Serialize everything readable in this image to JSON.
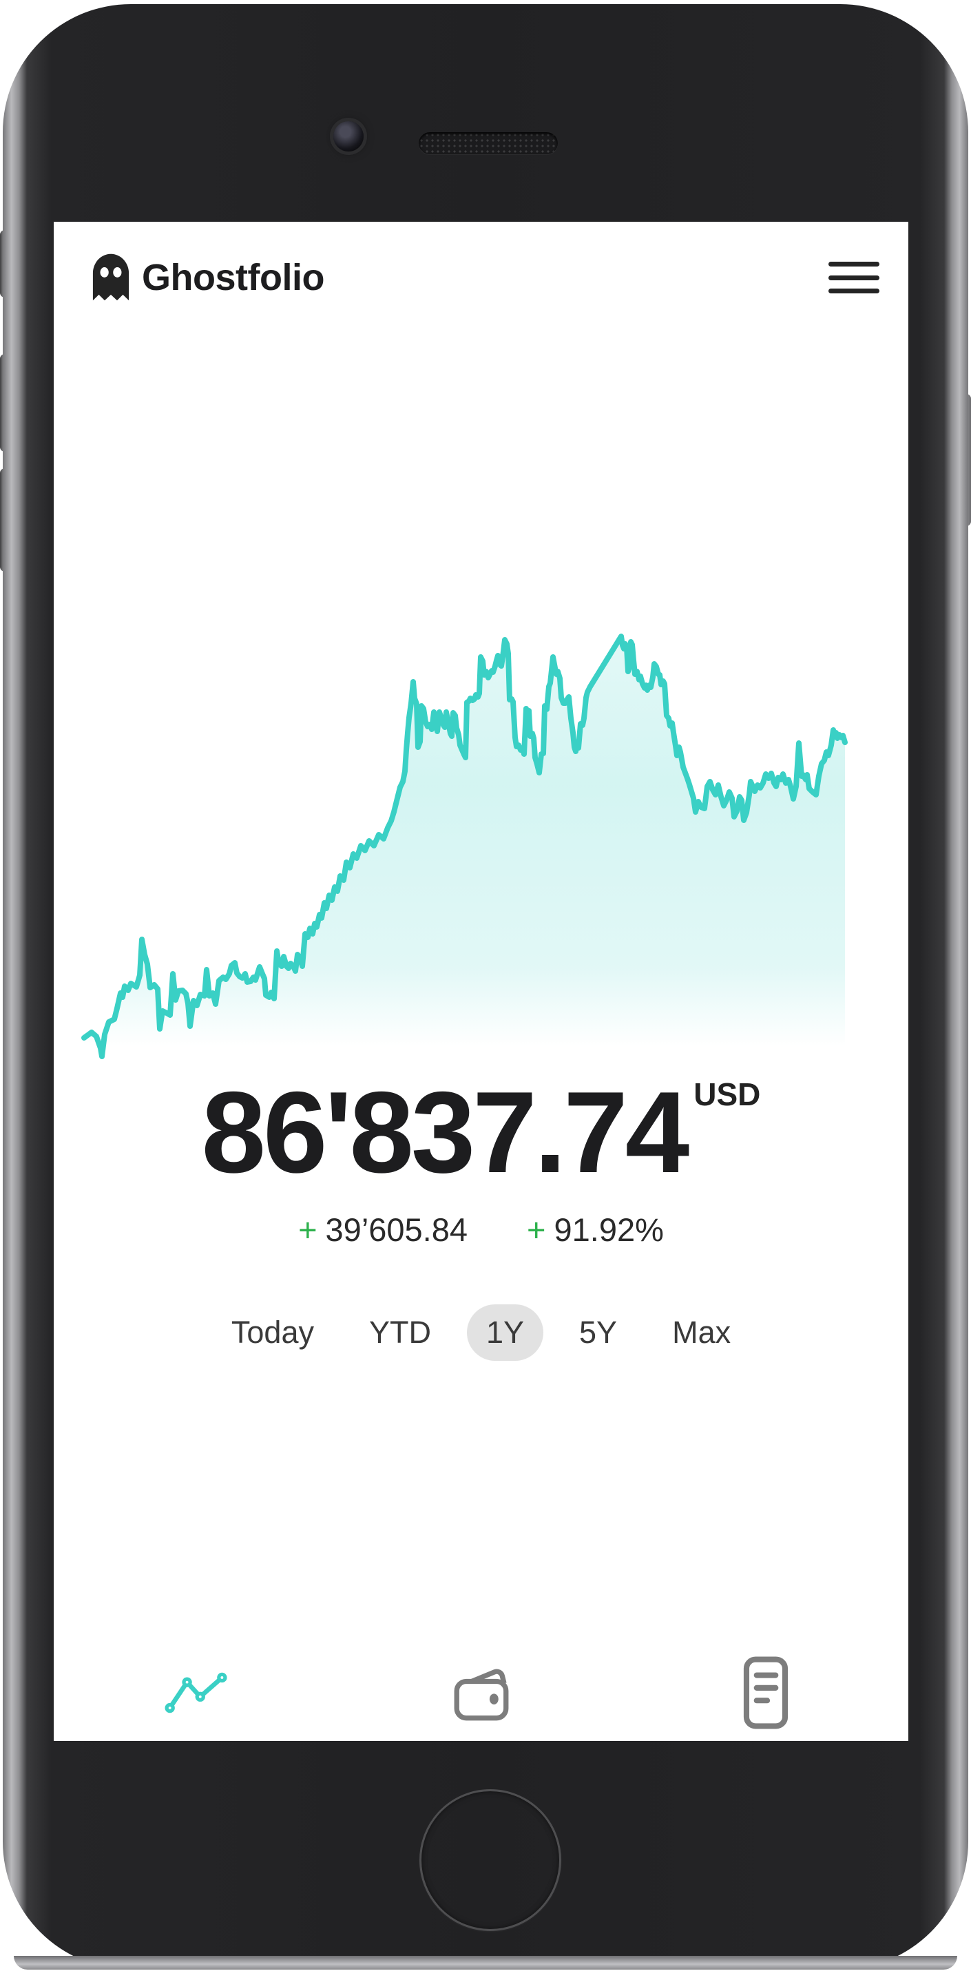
{
  "app": {
    "title": "Ghostfolio"
  },
  "header": {
    "logo_icon": "ghost-icon",
    "menu_icon": "hamburger-menu-icon"
  },
  "portfolio": {
    "total_value": "86'837.74",
    "currency": "USD",
    "change": {
      "sign": "+",
      "absolute": "39’605.84"
    },
    "performance": {
      "sign": "+",
      "percent": "91.92%"
    }
  },
  "range_selector": {
    "options": [
      {
        "label": "Today",
        "selected": false
      },
      {
        "label": "YTD",
        "selected": false
      },
      {
        "label": "1Y",
        "selected": true
      },
      {
        "label": "5Y",
        "selected": false
      },
      {
        "label": "Max",
        "selected": false
      }
    ]
  },
  "bottom_nav": [
    {
      "name": "overview",
      "icon": "line-chart-icon",
      "active": true
    },
    {
      "name": "accounts",
      "icon": "wallet-icon",
      "active": false
    },
    {
      "name": "transactions",
      "icon": "document-list-icon",
      "active": false
    }
  ],
  "colors": {
    "accent_teal": "#3ad0c5",
    "fill_teal": "#3ad0c5",
    "positive_green": "#2db14c",
    "text_dark": "#1d1d1f",
    "pill_gray": "#e2e2e2",
    "nav_inactive_gray": "#7d7d7d",
    "phone_body": "#232325"
  },
  "chart_data": {
    "type": "area",
    "description": "Portfolio value over selected range (1Y), no axes shown",
    "selected_range": "1Y",
    "end_value": "86'837.74 USD",
    "change_absolute": "+39'605.84",
    "change_percent": "+91.92%",
    "legend": false,
    "grid": false,
    "coordinate_space": "svg 1126x636, y down",
    "points": [
      [
        14,
        605
      ],
      [
        25,
        597
      ],
      [
        32,
        603
      ],
      [
        38,
        620
      ],
      [
        40,
        632
      ],
      [
        44,
        600
      ],
      [
        50,
        582
      ],
      [
        58,
        578
      ],
      [
        62,
        562
      ],
      [
        67,
        540
      ],
      [
        70,
        546
      ],
      [
        73,
        530
      ],
      [
        78,
        536
      ],
      [
        82,
        526
      ],
      [
        90,
        531
      ],
      [
        95,
        514
      ],
      [
        98,
        462
      ],
      [
        102,
        484
      ],
      [
        106,
        498
      ],
      [
        110,
        532
      ],
      [
        116,
        528
      ],
      [
        121,
        534
      ],
      [
        124,
        592
      ],
      [
        128,
        566
      ],
      [
        134,
        569
      ],
      [
        139,
        572
      ],
      [
        143,
        512
      ],
      [
        147,
        550
      ],
      [
        151,
        537
      ],
      [
        157,
        536
      ],
      [
        162,
        541
      ],
      [
        165,
        555
      ],
      [
        168,
        588
      ],
      [
        173,
        551
      ],
      [
        178,
        558
      ],
      [
        183,
        542
      ],
      [
        189,
        544
      ],
      [
        192,
        506
      ],
      [
        196,
        544
      ],
      [
        201,
        540
      ],
      [
        205,
        556
      ],
      [
        210,
        522
      ],
      [
        216,
        517
      ],
      [
        220,
        520
      ],
      [
        225,
        512
      ],
      [
        228,
        500
      ],
      [
        233,
        496
      ],
      [
        236,
        511
      ],
      [
        240,
        516
      ],
      [
        244,
        518
      ],
      [
        248,
        512
      ],
      [
        251,
        524
      ],
      [
        256,
        523
      ],
      [
        260,
        517
      ],
      [
        263,
        521
      ],
      [
        269,
        502
      ],
      [
        273,
        512
      ],
      [
        276,
        519
      ],
      [
        278,
        543
      ],
      [
        283,
        546
      ],
      [
        286,
        539
      ],
      [
        290,
        548
      ],
      [
        294,
        479
      ],
      [
        297,
        497
      ],
      [
        301,
        501
      ],
      [
        304,
        487
      ],
      [
        308,
        501
      ],
      [
        311,
        504
      ],
      [
        314,
        497
      ],
      [
        318,
        501
      ],
      [
        321,
        508
      ],
      [
        324,
        484
      ],
      [
        328,
        489
      ],
      [
        331,
        501
      ],
      [
        335,
        454
      ],
      [
        339,
        459
      ],
      [
        342,
        446
      ],
      [
        346,
        454
      ],
      [
        349,
        439
      ],
      [
        352,
        444
      ],
      [
        356,
        426
      ],
      [
        359,
        431
      ],
      [
        363,
        409
      ],
      [
        366,
        417
      ],
      [
        370,
        398
      ],
      [
        374,
        405
      ],
      [
        378,
        386
      ],
      [
        382,
        392
      ],
      [
        386,
        370
      ],
      [
        391,
        376
      ],
      [
        395,
        350
      ],
      [
        400,
        358
      ],
      [
        405,
        338
      ],
      [
        410,
        344
      ],
      [
        416,
        326
      ],
      [
        422,
        333
      ],
      [
        428,
        319
      ],
      [
        435,
        326
      ],
      [
        442,
        310
      ],
      [
        449,
        316
      ],
      [
        455,
        300
      ],
      [
        460,
        290
      ],
      [
        464,
        277
      ],
      [
        469,
        257
      ],
      [
        473,
        241
      ],
      [
        477,
        233
      ],
      [
        480,
        218
      ],
      [
        482,
        187
      ],
      [
        484,
        162
      ],
      [
        486,
        140
      ],
      [
        489,
        119
      ],
      [
        492,
        88
      ],
      [
        494,
        112
      ],
      [
        497,
        120
      ],
      [
        499,
        183
      ],
      [
        502,
        175
      ],
      [
        504,
        123
      ],
      [
        507,
        127
      ],
      [
        510,
        146
      ],
      [
        513,
        153
      ],
      [
        516,
        150
      ],
      [
        519,
        157
      ],
      [
        522,
        132
      ],
      [
        525,
        141
      ],
      [
        527,
        160
      ],
      [
        530,
        132
      ],
      [
        533,
        141
      ],
      [
        536,
        151
      ],
      [
        538,
        154
      ],
      [
        540,
        132
      ],
      [
        543,
        147
      ],
      [
        546,
        163
      ],
      [
        548,
        167
      ],
      [
        550,
        133
      ],
      [
        553,
        137
      ],
      [
        555,
        155
      ],
      [
        558,
        165
      ],
      [
        560,
        180
      ],
      [
        563,
        187
      ],
      [
        566,
        194
      ],
      [
        568,
        198
      ],
      [
        570,
        118
      ],
      [
        573,
        116
      ],
      [
        575,
        112
      ],
      [
        578,
        115
      ],
      [
        581,
        113
      ],
      [
        583,
        107
      ],
      [
        586,
        110
      ],
      [
        588,
        105
      ],
      [
        590,
        52
      ],
      [
        593,
        58
      ],
      [
        595,
        78
      ],
      [
        598,
        73
      ],
      [
        601,
        82
      ],
      [
        603,
        78
      ],
      [
        606,
        72
      ],
      [
        608,
        74
      ],
      [
        611,
        65
      ],
      [
        613,
        57
      ],
      [
        615,
        50
      ],
      [
        617,
        62
      ],
      [
        620,
        65
      ],
      [
        622,
        52
      ],
      [
        625,
        27
      ],
      [
        628,
        33
      ],
      [
        630,
        47
      ],
      [
        632,
        114
      ],
      [
        635,
        113
      ],
      [
        637,
        117
      ],
      [
        640,
        169
      ],
      [
        642,
        182
      ],
      [
        645,
        180
      ],
      [
        648,
        187
      ],
      [
        651,
        185
      ],
      [
        653,
        193
      ],
      [
        656,
        127
      ],
      [
        658,
        132
      ],
      [
        660,
        130
      ],
      [
        662,
        167
      ],
      [
        665,
        163
      ],
      [
        667,
        170
      ],
      [
        669,
        198
      ],
      [
        672,
        208
      ],
      [
        675,
        220
      ],
      [
        678,
        193
      ],
      [
        681,
        192
      ],
      [
        683,
        123
      ],
      [
        686,
        128
      ],
      [
        689,
        95
      ],
      [
        691,
        90
      ],
      [
        695,
        52
      ],
      [
        698,
        68
      ],
      [
        700,
        77
      ],
      [
        702,
        73
      ],
      [
        705,
        83
      ],
      [
        707,
        111
      ],
      [
        710,
        119
      ],
      [
        713,
        119
      ],
      [
        716,
        113
      ],
      [
        718,
        110
      ],
      [
        721,
        141
      ],
      [
        724,
        162
      ],
      [
        726,
        183
      ],
      [
        728,
        189
      ],
      [
        730,
        178
      ],
      [
        732,
        184
      ],
      [
        735,
        149
      ],
      [
        738,
        151
      ],
      [
        740,
        141
      ],
      [
        743,
        111
      ],
      [
        745,
        103
      ],
      [
        749,
        95
      ],
      [
        794,
        22
      ],
      [
        796,
        35
      ],
      [
        798,
        40
      ],
      [
        800,
        33
      ],
      [
        802,
        38
      ],
      [
        804,
        73
      ],
      [
        806,
        67
      ],
      [
        808,
        30
      ],
      [
        810,
        34
      ],
      [
        812,
        57
      ],
      [
        814,
        77
      ],
      [
        817,
        73
      ],
      [
        820,
        85
      ],
      [
        822,
        80
      ],
      [
        825,
        91
      ],
      [
        828,
        97
      ],
      [
        830,
        93
      ],
      [
        832,
        100
      ],
      [
        835,
        93
      ],
      [
        837,
        96
      ],
      [
        840,
        81
      ],
      [
        842,
        62
      ],
      [
        845,
        66
      ],
      [
        848,
        77
      ],
      [
        850,
        78
      ],
      [
        852,
        92
      ],
      [
        855,
        87
      ],
      [
        857,
        91
      ],
      [
        860,
        137
      ],
      [
        863,
        141
      ],
      [
        865,
        152
      ],
      [
        868,
        148
      ],
      [
        870,
        162
      ],
      [
        873,
        181
      ],
      [
        875,
        195
      ],
      [
        878,
        183
      ],
      [
        880,
        190
      ],
      [
        884,
        212
      ],
      [
        887,
        220
      ],
      [
        890,
        228
      ],
      [
        893,
        237
      ],
      [
        896,
        247
      ],
      [
        899,
        257
      ],
      [
        902,
        277
      ],
      [
        906,
        262
      ],
      [
        910,
        270
      ],
      [
        915,
        272
      ],
      [
        919,
        240
      ],
      [
        923,
        233
      ],
      [
        927,
        245
      ],
      [
        931,
        252
      ],
      [
        935,
        238
      ],
      [
        939,
        255
      ],
      [
        943,
        268
      ],
      [
        947,
        260
      ],
      [
        951,
        248
      ],
      [
        955,
        257
      ],
      [
        958,
        284
      ],
      [
        962,
        276
      ],
      [
        966,
        255
      ],
      [
        969,
        260
      ],
      [
        972,
        289
      ],
      [
        976,
        278
      ],
      [
        980,
        252
      ],
      [
        982,
        233
      ],
      [
        985,
        240
      ],
      [
        988,
        247
      ],
      [
        992,
        238
      ],
      [
        996,
        242
      ],
      [
        1000,
        235
      ],
      [
        1004,
        222
      ],
      [
        1008,
        228
      ],
      [
        1012,
        221
      ],
      [
        1016,
        235
      ],
      [
        1019,
        240
      ],
      [
        1022,
        227
      ],
      [
        1026,
        230
      ],
      [
        1029,
        222
      ],
      [
        1033,
        235
      ],
      [
        1037,
        230
      ],
      [
        1040,
        240
      ],
      [
        1044,
        258
      ],
      [
        1048,
        240
      ],
      [
        1052,
        177
      ],
      [
        1056,
        225
      ],
      [
        1058,
        223
      ],
      [
        1062,
        230
      ],
      [
        1064,
        223
      ],
      [
        1067,
        243
      ],
      [
        1072,
        248
      ],
      [
        1077,
        252
      ],
      [
        1081,
        225
      ],
      [
        1085,
        207
      ],
      [
        1089,
        202
      ],
      [
        1092,
        190
      ],
      [
        1095,
        195
      ],
      [
        1099,
        180
      ],
      [
        1102,
        158
      ],
      [
        1104,
        167
      ],
      [
        1106,
        162
      ],
      [
        1108,
        170
      ],
      [
        1111,
        165
      ],
      [
        1114,
        169
      ],
      [
        1116,
        166
      ],
      [
        1119,
        176
      ]
    ]
  }
}
